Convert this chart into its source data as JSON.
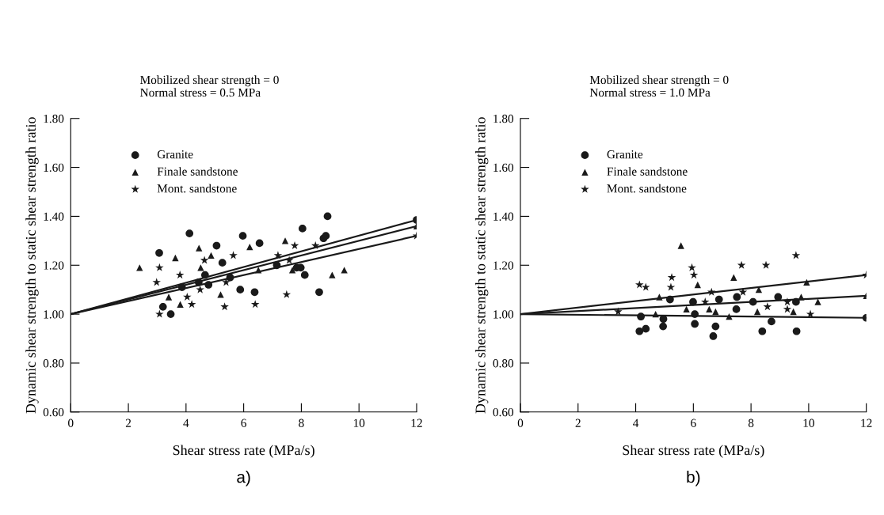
{
  "chart_data": [
    {
      "type": "scatter",
      "title": "Mobilized shear strength = 0\nNormal stress = 0.5 MPa",
      "xlabel": "Shear stress rate (MPa/s)",
      "ylabel": "Dynamic shear strength to static shear strength ratio",
      "annotations": [
        "a)"
      ],
      "xlim": [
        0,
        12
      ],
      "ylim": [
        0.6,
        1.8
      ],
      "xticks": [
        0,
        2,
        4,
        6,
        8,
        10,
        12
      ],
      "yticks": [
        {
          "value": 0.6,
          "label": "0.60"
        },
        {
          "value": 0.8,
          "label": "0.80"
        },
        {
          "value": 1.0,
          "label": "1.00"
        },
        {
          "value": 1.2,
          "label": "1.20"
        },
        {
          "value": 1.4,
          "label": "1.40"
        },
        {
          "value": 1.6,
          "label": "1.60"
        },
        {
          "value": 1.8,
          "label": "1.80"
        }
      ],
      "grid": false,
      "legend": "top left",
      "series": [
        {
          "name": "Granite",
          "marker": "circle",
          "color": "#1a1a1a",
          "x": [
            3.07,
            3.2,
            3.47,
            4.12,
            3.86,
            4.44,
            4.66,
            4.78,
            5.06,
            5.26,
            5.53,
            5.88,
            5.97,
            6.38,
            6.55,
            7.15,
            7.84,
            7.98,
            8.04,
            8.12,
            8.62,
            8.77,
            8.85,
            8.91,
            12
          ],
          "values": [
            1.25,
            1.03,
            1.0,
            1.33,
            1.11,
            1.13,
            1.16,
            1.12,
            1.28,
            1.21,
            1.15,
            1.1,
            1.32,
            1.09,
            1.29,
            1.2,
            1.19,
            1.19,
            1.35,
            1.16,
            1.09,
            1.31,
            1.32,
            1.4,
            1.385
          ]
        },
        {
          "name": "Finale sandstone",
          "marker": "triangle",
          "color": "#1a1a1a",
          "x": [
            2.39,
            3.4,
            3.63,
            3.8,
            4.45,
            4.51,
            4.87,
            5.2,
            6.21,
            6.51,
            7.44,
            7.69,
            9.07,
            9.49,
            12
          ],
          "values": [
            1.19,
            1.07,
            1.23,
            1.04,
            1.27,
            1.19,
            1.24,
            1.08,
            1.275,
            1.18,
            1.3,
            1.18,
            1.16,
            1.18,
            1.36
          ]
        },
        {
          "name": "Mont. sandstone",
          "marker": "star",
          "color": "#1a1a1a",
          "x": [
            2.98,
            3.08,
            3.08,
            3.79,
            4.04,
            4.2,
            4.49,
            4.64,
            5.34,
            5.39,
            5.64,
            6.4,
            7.19,
            7.49,
            7.58,
            7.77,
            8.49,
            12
          ],
          "values": [
            1.13,
            1.19,
            1.0,
            1.16,
            1.07,
            1.04,
            1.1,
            1.22,
            1.03,
            1.13,
            1.24,
            1.04,
            1.24,
            1.08,
            1.22,
            1.28,
            1.28,
            1.32
          ]
        },
        {
          "type": "line",
          "line_style": "solid",
          "color": "#1a1a1a",
          "x": [
            0,
            12
          ],
          "values": [
            1.0,
            1.385
          ]
        },
        {
          "type": "line",
          "line_style": "solid",
          "color": "#1a1a1a",
          "x": [
            0,
            12
          ],
          "values": [
            1.0,
            1.36
          ]
        },
        {
          "type": "line",
          "line_style": "solid",
          "color": "#1a1a1a",
          "x": [
            0,
            12
          ],
          "values": [
            1.0,
            1.32
          ]
        }
      ]
    },
    {
      "type": "scatter",
      "title": "Mobilized shear strength = 0\nNormal stress = 1.0 MPa",
      "xlabel": "Shear stress rate (MPa/s)",
      "ylabel": "Dynamic shear strength to static shear strength ratio",
      "annotations": [
        "b)"
      ],
      "xlim": [
        0,
        12
      ],
      "ylim": [
        0.6,
        1.8
      ],
      "xticks": [
        0,
        2,
        4,
        6,
        8,
        10,
        12
      ],
      "yticks": [
        {
          "value": 0.6,
          "label": "0.60"
        },
        {
          "value": 0.8,
          "label": "0.80"
        },
        {
          "value": 1.0,
          "label": "1.00"
        },
        {
          "value": 1.2,
          "label": "1.20"
        },
        {
          "value": 1.4,
          "label": "1.40"
        },
        {
          "value": 1.6,
          "label": "1.60"
        },
        {
          "value": 1.8,
          "label": "1.80"
        }
      ],
      "grid": false,
      "legend": "top left",
      "series": [
        {
          "name": "Granite",
          "marker": "circle",
          "color": "#1a1a1a",
          "x": [
            4.13,
            4.35,
            4.18,
            4.96,
            4.95,
            5.19,
            5.99,
            6.05,
            6.05,
            6.69,
            6.77,
            6.89,
            7.51,
            7.49,
            8.07,
            8.39,
            8.71,
            8.94,
            9.56,
            9.58,
            12
          ],
          "values": [
            0.93,
            0.94,
            0.99,
            0.98,
            0.95,
            1.06,
            1.05,
            1.0,
            0.96,
            0.91,
            0.95,
            1.06,
            1.07,
            1.02,
            1.05,
            0.93,
            0.97,
            1.07,
            1.05,
            0.93,
            0.985
          ]
        },
        {
          "name": "Finale sandstone",
          "marker": "triangle",
          "color": "#1a1a1a",
          "x": [
            5.57,
            4.82,
            4.69,
            5.76,
            6.15,
            6.55,
            6.77,
            7.24,
            7.4,
            8.27,
            8.22,
            9.47,
            9.74,
            9.93,
            10.32,
            12
          ],
          "values": [
            1.28,
            1.07,
            1.0,
            1.02,
            1.12,
            1.02,
            1.01,
            0.99,
            1.15,
            1.1,
            1.01,
            1.01,
            1.07,
            1.13,
            1.05,
            1.075
          ]
        },
        {
          "name": "Mont. sandstone",
          "marker": "star",
          "color": "#1a1a1a",
          "x": [
            4.13,
            4.35,
            3.39,
            5.25,
            5.22,
            5.95,
            6.02,
            6.41,
            6.63,
            7.67,
            7.72,
            8.52,
            8.57,
            9.26,
            9.26,
            9.56,
            10.06,
            12
          ],
          "values": [
            1.12,
            1.11,
            1.01,
            1.15,
            1.11,
            1.19,
            1.16,
            1.05,
            1.09,
            1.2,
            1.09,
            1.2,
            1.03,
            1.05,
            1.02,
            1.24,
            1.0,
            1.16
          ]
        },
        {
          "type": "line",
          "line_style": "solid",
          "color": "#1a1a1a",
          "x": [
            0,
            12
          ],
          "values": [
            1.0,
            1.16
          ]
        },
        {
          "type": "line",
          "line_style": "solid",
          "color": "#1a1a1a",
          "x": [
            0,
            12
          ],
          "values": [
            1.0,
            1.075
          ]
        },
        {
          "type": "line",
          "line_style": "solid",
          "color": "#1a1a1a",
          "x": [
            0,
            12
          ],
          "values": [
            1.0,
            0.985
          ]
        }
      ]
    }
  ]
}
